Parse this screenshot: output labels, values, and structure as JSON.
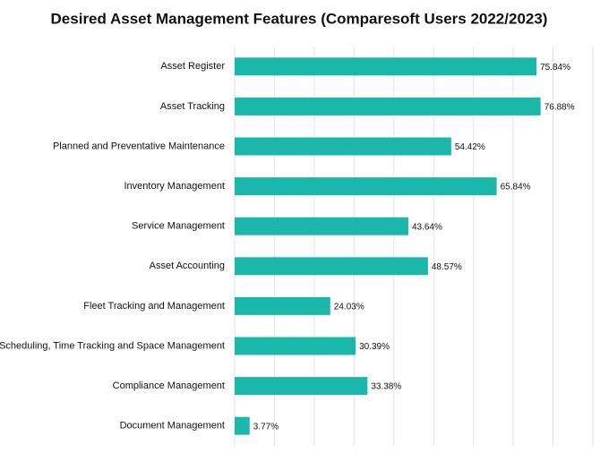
{
  "chart_data": {
    "type": "bar",
    "orientation": "horizontal",
    "title": "Desired Asset Management Features (Comparesoft Users 2022/2023)",
    "categories": [
      "Asset Register",
      "Asset Tracking",
      "Planned and Preventative Maintenance",
      "Inventory Management",
      "Service Management",
      "Asset Accounting",
      "Fleet Tracking and Management",
      "Scheduling, Time Tracking and Space Management",
      "Compliance Management",
      "Document Management"
    ],
    "values": [
      75.84,
      76.88,
      54.42,
      65.84,
      43.64,
      48.57,
      24.03,
      30.39,
      33.38,
      3.77
    ],
    "value_labels": [
      "75.84%",
      "76.88%",
      "54.42%",
      "65.84%",
      "43.64%",
      "48.57%",
      "24.03%",
      "30.39%",
      "33.38%",
      "3.77%"
    ],
    "color": "#1ab8aa",
    "xlim": [
      0,
      90
    ],
    "xticks": [
      0,
      10,
      20,
      30,
      40,
      50,
      60,
      70,
      80,
      90
    ],
    "grid": true
  }
}
